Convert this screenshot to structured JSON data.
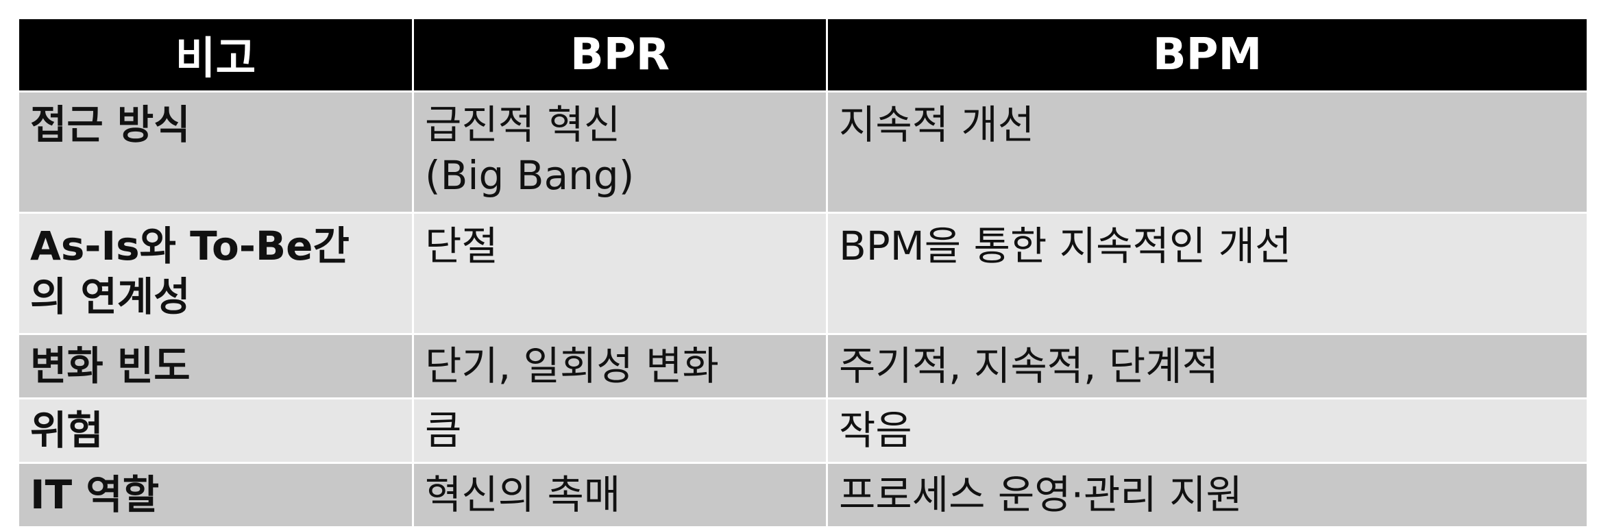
{
  "table": {
    "headers": [
      "비고",
      "BPR",
      "BPM"
    ],
    "rows": [
      {
        "label": [
          "접근 방식"
        ],
        "bpr": [
          "급진적 혁신",
          "(Big Bang)"
        ],
        "bpm": [
          "지속적 개선"
        ]
      },
      {
        "label": [
          "As-Is와 To-Be간",
          "의 연계성"
        ],
        "bpr": [
          "단절"
        ],
        "bpm": [
          "BPM을 통한 지속적인 개선"
        ]
      },
      {
        "label": [
          "변화 빈도"
        ],
        "bpr": [
          "단기, 일회성 변화"
        ],
        "bpm": [
          "주기적, 지속적, 단계적"
        ]
      },
      {
        "label": [
          "위험"
        ],
        "bpr": [
          "큼"
        ],
        "bpm": [
          "작음"
        ]
      },
      {
        "label": [
          "IT 역할"
        ],
        "bpr": [
          "혁신의 촉매"
        ],
        "bpm": [
          "프로세스 운영·관리 지원"
        ]
      }
    ],
    "colors": {
      "header_bg": "#000000",
      "header_text": "#ffffff",
      "row_dark": "#c8c8c8",
      "row_light": "#e6e6e6"
    }
  }
}
